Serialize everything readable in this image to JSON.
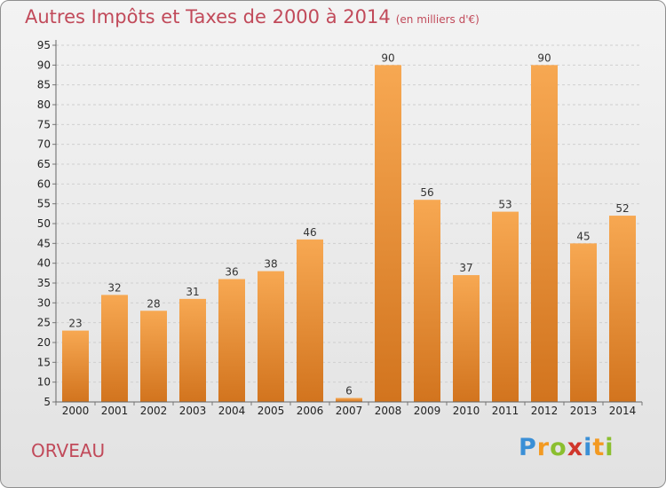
{
  "title": "Autres Impôts et Taxes de 2000 à 2014",
  "subtitle": "(en milliers d'€)",
  "commune": "ORVEAU",
  "logo": {
    "letters": [
      "P",
      "r",
      "o",
      "x",
      "i",
      "t",
      "i"
    ],
    "colors": [
      "#3a8fd6",
      "#f39a22",
      "#8bbf2f",
      "#d0362b",
      "#3a8fd6",
      "#f39a22",
      "#8bbf2f"
    ]
  },
  "chart_data": {
    "type": "bar",
    "categories": [
      "2000",
      "2001",
      "2002",
      "2003",
      "2004",
      "2005",
      "2006",
      "2007",
      "2008",
      "2009",
      "2010",
      "2011",
      "2012",
      "2013",
      "2014"
    ],
    "values": [
      23,
      32,
      28,
      31,
      36,
      38,
      46,
      6,
      90,
      56,
      37,
      53,
      90,
      45,
      52
    ],
    "ylim": [
      5,
      95
    ],
    "yticks": [
      5,
      10,
      15,
      20,
      25,
      30,
      35,
      40,
      45,
      50,
      55,
      60,
      65,
      70,
      75,
      80,
      85,
      90,
      95
    ],
    "grid": true,
    "bar_color_top": "#f7a852",
    "bar_color_bottom": "#d2741e"
  }
}
